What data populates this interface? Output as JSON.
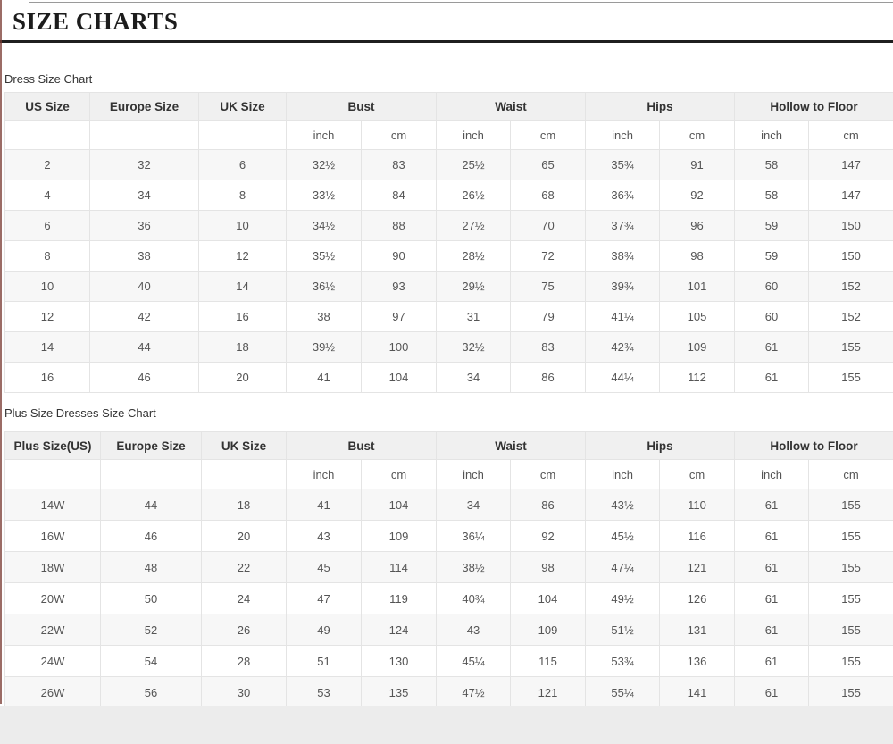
{
  "page": {
    "title": "SIZE CHARTS",
    "colors": {
      "title_rule": "#1f1f1f",
      "header_bg": "#f0f0f0",
      "row_alt_bg": "#f7f7f7",
      "border": "#e4e4e4",
      "bottom_band": "#ececec"
    }
  },
  "unit_labels": [
    "inch",
    "cm"
  ],
  "tables": [
    {
      "caption": "Dress Size Chart",
      "plain_headers": [
        "US Size",
        "Europe Size",
        "UK Size"
      ],
      "group_headers": [
        "Bust",
        "Waist",
        "Hips",
        "Hollow to Floor"
      ],
      "rows": [
        [
          "2",
          "32",
          "6",
          "32½",
          "83",
          "25½",
          "65",
          "35¾",
          "91",
          "58",
          "147"
        ],
        [
          "4",
          "34",
          "8",
          "33½",
          "84",
          "26½",
          "68",
          "36¾",
          "92",
          "58",
          "147"
        ],
        [
          "6",
          "36",
          "10",
          "34½",
          "88",
          "27½",
          "70",
          "37¾",
          "96",
          "59",
          "150"
        ],
        [
          "8",
          "38",
          "12",
          "35½",
          "90",
          "28½",
          "72",
          "38¾",
          "98",
          "59",
          "150"
        ],
        [
          "10",
          "40",
          "14",
          "36½",
          "93",
          "29½",
          "75",
          "39¾",
          "101",
          "60",
          "152"
        ],
        [
          "12",
          "42",
          "16",
          "38",
          "97",
          "31",
          "79",
          "41¼",
          "105",
          "60",
          "152"
        ],
        [
          "14",
          "44",
          "18",
          "39½",
          "100",
          "32½",
          "83",
          "42¾",
          "109",
          "61",
          "155"
        ],
        [
          "16",
          "46",
          "20",
          "41",
          "104",
          "34",
          "86",
          "44¼",
          "112",
          "61",
          "155"
        ]
      ]
    },
    {
      "caption": "Plus Size Dresses Size Chart",
      "plain_headers": [
        "Plus Size(US)",
        "Europe Size",
        "UK Size"
      ],
      "group_headers": [
        "Bust",
        "Waist",
        "Hips",
        "Hollow to Floor"
      ],
      "rows": [
        [
          "14W",
          "44",
          "18",
          "41",
          "104",
          "34",
          "86",
          "43½",
          "110",
          "61",
          "155"
        ],
        [
          "16W",
          "46",
          "20",
          "43",
          "109",
          "36¼",
          "92",
          "45½",
          "116",
          "61",
          "155"
        ],
        [
          "18W",
          "48",
          "22",
          "45",
          "114",
          "38½",
          "98",
          "47¼",
          "121",
          "61",
          "155"
        ],
        [
          "20W",
          "50",
          "24",
          "47",
          "119",
          "40¾",
          "104",
          "49½",
          "126",
          "61",
          "155"
        ],
        [
          "22W",
          "52",
          "26",
          "49",
          "124",
          "43",
          "109",
          "51½",
          "131",
          "61",
          "155"
        ],
        [
          "24W",
          "54",
          "28",
          "51",
          "130",
          "45¼",
          "115",
          "53¾",
          "136",
          "61",
          "155"
        ],
        [
          "26W",
          "56",
          "30",
          "53",
          "135",
          "47½",
          "121",
          "55¼",
          "141",
          "61",
          "155"
        ]
      ]
    }
  ]
}
